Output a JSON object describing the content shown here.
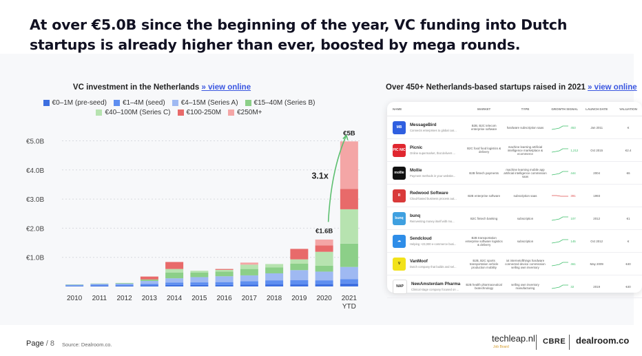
{
  "headline": "At over €5.0B since the beginning of the year, VC funding into Dutch startups is already higher than ever, boosted by mega rounds.",
  "chart_title": "VC investment in the Netherlands",
  "chart_link": "» view online",
  "table_title": "Over 450+ Netherlands-based startups raised in 2021",
  "table_link": "» view online",
  "colors": {
    "seed_pre": "#3d6fe0",
    "seed": "#5e8ef0",
    "series_a": "#9fb9f2",
    "series_b": "#8ccf88",
    "series_c": "#b7e3b0",
    "r100_250": "#e86a6a",
    "r250_plus": "#f4a6a6",
    "accent": "#3a56e0",
    "arrow": "#5cbf6f"
  },
  "chart_data": {
    "type": "bar",
    "stacked": true,
    "categories": [
      "2010",
      "2011",
      "2012",
      "2013",
      "2014",
      "2015",
      "2016",
      "2017",
      "2018",
      "2019",
      "2020",
      "2021 YTD"
    ],
    "ylim": [
      0,
      5.5
    ],
    "yticks": [
      "€1.0B",
      "€2.0B",
      "€3.0B",
      "€4.0B",
      "€5.0B"
    ],
    "grid": true,
    "series": [
      {
        "name": "€0–1M (pre-seed)",
        "color": "#3d6fe0",
        "values": [
          0.02,
          0.03,
          0.03,
          0.04,
          0.05,
          0.05,
          0.05,
          0.06,
          0.07,
          0.07,
          0.08,
          0.1
        ]
      },
      {
        "name": "€1–4M (seed)",
        "color": "#5e8ef0",
        "values": [
          0.02,
          0.03,
          0.03,
          0.05,
          0.08,
          0.09,
          0.1,
          0.12,
          0.14,
          0.15,
          0.13,
          0.15
        ]
      },
      {
        "name": "€4–15M (Series A)",
        "color": "#9fb9f2",
        "values": [
          0.02,
          0.03,
          0.04,
          0.1,
          0.15,
          0.18,
          0.2,
          0.2,
          0.24,
          0.34,
          0.3,
          0.42
        ]
      },
      {
        "name": "€15–40M (Series B)",
        "color": "#8ccf88",
        "values": [
          0.01,
          0.01,
          0.02,
          0.05,
          0.2,
          0.16,
          0.16,
          0.22,
          0.2,
          0.22,
          0.2,
          0.8
        ]
      },
      {
        "name": "€40–100M (Series C)",
        "color": "#b7e3b0",
        "values": [
          0.0,
          0.0,
          0.0,
          0.0,
          0.12,
          0.06,
          0.06,
          0.15,
          0.12,
          0.15,
          0.48,
          1.18
        ]
      },
      {
        "name": "€100-250M",
        "color": "#e86a6a",
        "values": [
          0.0,
          0.0,
          0.0,
          0.1,
          0.24,
          0.0,
          0.03,
          0.0,
          0.0,
          0.36,
          0.22,
          0.7
        ]
      },
      {
        "name": "€250M+",
        "color": "#f4a6a6",
        "values": [
          0.0,
          0.0,
          0.0,
          0.0,
          0.0,
          0.0,
          0.0,
          0.07,
          0.0,
          0.0,
          0.2,
          1.63
        ]
      }
    ],
    "annotations": [
      {
        "label": "€1.6B",
        "category": "2020",
        "value": 1.6
      },
      {
        "label": "€5B",
        "category": "2021 YTD",
        "value": 5.0
      },
      {
        "label": "3.1x",
        "from": "2020",
        "to": "2021 YTD"
      }
    ]
  },
  "table": {
    "columns": [
      "NAME",
      "MARKET",
      "TYPE",
      "GROWTH SIGNAL",
      "LAUNCH DATE",
      "VALUATION"
    ],
    "rows": [
      {
        "name": "MessageBird",
        "desc": "Connects enterprises to global cus...",
        "market": "B2B, B2C telecom enterprise software",
        "type": "hardware subscription saas",
        "growth": "453",
        "launch": "Jan 2011",
        "valuation": "€",
        "logo": "MB",
        "logo_color": "#2f5fe0"
      },
      {
        "name": "Picnic",
        "desc": "Online supermarket, that delivers ...",
        "market": "B2C food food logistics & delivery",
        "type": "machine learning artificial intelligence marketplace & ecommerce",
        "growth": "1,212",
        "launch": "Oct 2015",
        "valuation": "€2.4",
        "logo": "PIC NIC",
        "logo_color": "#e0262f"
      },
      {
        "name": "Mollie",
        "desc": "Payment methods in your website...",
        "market": "B2B fintech payments",
        "type": "machine learning mobile app artificial intelligence commission saas",
        "growth": "444",
        "launch": "2004",
        "valuation": "€6",
        "logo": "mollie",
        "logo_color": "#111111"
      },
      {
        "name": "Redwood Software",
        "desc": "Cloud-based business process aut...",
        "market": "B2B enterprise software",
        "type": "subscription saas",
        "growth": "391",
        "launch": "1993",
        "valuation": "",
        "logo": "R",
        "logo_color": "#d93a3a"
      },
      {
        "name": "bunq",
        "desc": "Reinventing money itself with mo...",
        "market": "B2C fintech banking",
        "type": "subscription",
        "growth": "107",
        "launch": "2012",
        "valuation": "€1",
        "logo": "bunq",
        "logo_color": "#3fa0e0"
      },
      {
        "name": "Sendcloud",
        "desc": "Helping +23,000 e-commerce busi...",
        "market": "B2B transportation enterprise software logistics & delivery",
        "type": "subscription",
        "growth": "145",
        "launch": "Oct 2012",
        "valuation": "€",
        "logo": "☁",
        "logo_color": "#2e8de8"
      },
      {
        "name": "VanMoof",
        "desc": "Dutch company that builds and sel...",
        "market": "B2B, B2C sports transportation vehicle production mobility",
        "type": "iot internetofthings hardware connected device commission selling own inventory",
        "growth": "461",
        "launch": "May 2009",
        "valuation": "€40",
        "logo": "V",
        "logo_color": "#f2e21a"
      },
      {
        "name": "NewAmsterdam Pharma",
        "desc": "Clinical stage company focused on ...",
        "market": "B2B health pharmaceutical biotechnology",
        "type": "selling own inventory manufacturing",
        "growth": "32",
        "launch": "2019",
        "valuation": "€40",
        "logo": "NAP",
        "logo_color": "#ffffff"
      }
    ]
  },
  "footer": {
    "page_label": "Page",
    "page_number": "/ 8",
    "source": "Source: Dealroom.co.",
    "brand1": "techleap.nl",
    "brand1_sub": "Job Board",
    "brand2": "CBRE",
    "brand3": "dealroom.co"
  }
}
